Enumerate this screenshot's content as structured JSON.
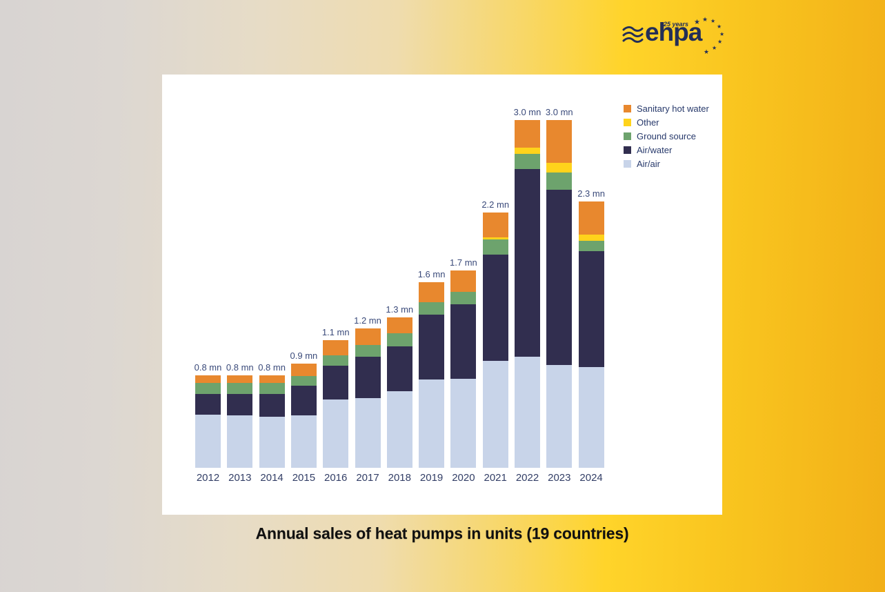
{
  "logo": {
    "brand": "ehpa",
    "anniversary": "25 years",
    "star_glyph": "★"
  },
  "caption": "Annual sales of heat pumps in units (19 countries)",
  "colors": {
    "background_left": "#d8d4d2",
    "background_right": "#f2b018",
    "panel": "#ffffff",
    "logo_navy": "#232e57",
    "value_label_text": "#3a4a7a",
    "year_label_text": "#323e66",
    "legend_text": "#27396b"
  },
  "chart_data": {
    "type": "bar",
    "stacked": true,
    "title": "Annual sales of heat pumps in units (19 countries)",
    "unit": "million units",
    "grid": false,
    "y_axis_visible": false,
    "legend_position": "top-right",
    "categories": [
      "2012",
      "2013",
      "2014",
      "2015",
      "2016",
      "2017",
      "2018",
      "2019",
      "2020",
      "2021",
      "2022",
      "2023",
      "2024"
    ],
    "totals": [
      0.8,
      0.8,
      0.8,
      0.9,
      1.1,
      1.2,
      1.3,
      1.6,
      1.7,
      2.2,
      3.0,
      3.0,
      2.3
    ],
    "total_labels": [
      "0.8 mn",
      "0.8 mn",
      "0.8 mn",
      "0.9 mn",
      "1.1 mn",
      "1.2 mn",
      "1.3 mn",
      "1.6 mn",
      "1.7 mn",
      "2.2 mn",
      "3.0 mn",
      "3.0 mn",
      "2.3 mn"
    ],
    "series": [
      {
        "name": "Air/air",
        "color": "#c8d4e9",
        "values": [
          0.46,
          0.45,
          0.44,
          0.45,
          0.59,
          0.6,
          0.66,
          0.76,
          0.77,
          0.92,
          0.96,
          0.89,
          0.87
        ]
      },
      {
        "name": "Air/water",
        "color": "#312e4f",
        "values": [
          0.18,
          0.19,
          0.2,
          0.26,
          0.29,
          0.36,
          0.39,
          0.56,
          0.64,
          0.92,
          1.62,
          1.51,
          1.0
        ]
      },
      {
        "name": "Ground source",
        "color": "#6da36d",
        "values": [
          0.09,
          0.09,
          0.09,
          0.08,
          0.09,
          0.1,
          0.11,
          0.11,
          0.11,
          0.13,
          0.13,
          0.15,
          0.09
        ]
      },
      {
        "name": "Other",
        "color": "#ffd31b",
        "values": [
          0,
          0,
          0,
          0,
          0,
          0,
          0,
          0,
          0,
          0.02,
          0.05,
          0.08,
          0.05
        ]
      },
      {
        "name": "Sanitary hot water",
        "color": "#e8882e",
        "values": [
          0.07,
          0.07,
          0.07,
          0.11,
          0.13,
          0.14,
          0.14,
          0.17,
          0.18,
          0.21,
          0.24,
          0.37,
          0.29
        ]
      }
    ]
  }
}
